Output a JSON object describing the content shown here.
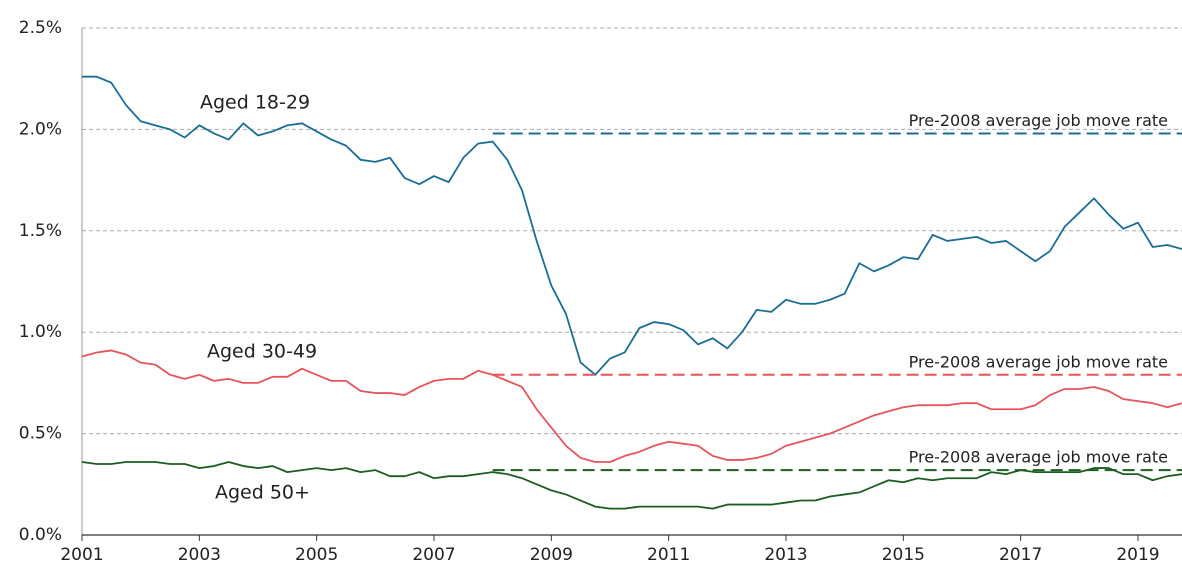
{
  "chart_data": {
    "type": "line",
    "x": [
      2001,
      2001.25,
      2001.5,
      2001.75,
      2002,
      2002.25,
      2002.5,
      2002.75,
      2003,
      2003.25,
      2003.5,
      2003.75,
      2004,
      2004.25,
      2004.5,
      2004.75,
      2005,
      2005.25,
      2005.5,
      2005.75,
      2006,
      2006.25,
      2006.5,
      2006.75,
      2007,
      2007.25,
      2007.5,
      2007.75,
      2008,
      2008.25,
      2008.5,
      2008.75,
      2009,
      2009.25,
      2009.5,
      2009.75,
      2010,
      2010.25,
      2010.5,
      2010.75,
      2011,
      2011.25,
      2011.5,
      2011.75,
      2012,
      2012.25,
      2012.5,
      2012.75,
      2013,
      2013.25,
      2013.5,
      2013.75,
      2014,
      2014.25,
      2014.5,
      2014.75,
      2015,
      2015.25,
      2015.5,
      2015.75,
      2016,
      2016.25,
      2016.5,
      2016.75,
      2017,
      2017.25,
      2017.5,
      2017.75,
      2018,
      2018.25,
      2018.5,
      2018.75,
      2019,
      2019.25,
      2019.5,
      2019.75
    ],
    "series": [
      {
        "name": "Aged 18-29",
        "color": "#1a6e96",
        "label_color": "#1a6e96",
        "values": [
          2.26,
          2.26,
          2.23,
          2.12,
          2.04,
          2.02,
          2.0,
          1.96,
          2.02,
          1.98,
          1.95,
          2.03,
          1.97,
          1.99,
          2.02,
          2.03,
          1.99,
          1.95,
          1.92,
          1.85,
          1.84,
          1.86,
          1.76,
          1.73,
          1.77,
          1.74,
          1.86,
          1.93,
          1.94,
          1.85,
          1.7,
          1.45,
          1.23,
          1.09,
          0.85,
          0.79,
          0.87,
          0.9,
          1.02,
          1.05,
          1.04,
          1.01,
          0.94,
          0.97,
          0.92,
          1.0,
          1.11,
          1.1,
          1.16,
          1.14,
          1.14,
          1.16,
          1.19,
          1.34,
          1.3,
          1.33,
          1.37,
          1.36,
          1.48,
          1.45,
          1.46,
          1.47,
          1.44,
          1.45,
          1.4,
          1.35,
          1.4,
          1.52,
          1.59,
          1.66,
          1.58,
          1.51,
          1.54,
          1.42,
          1.43,
          1.41
        ],
        "average": 1.98,
        "average_label": "Pre-2008 average job move rate"
      },
      {
        "name": "Aged 30-49",
        "color": "#e8545a",
        "label_color": "#e8545a",
        "values": [
          0.88,
          0.9,
          0.91,
          0.89,
          0.85,
          0.84,
          0.79,
          0.77,
          0.79,
          0.76,
          0.77,
          0.75,
          0.75,
          0.78,
          0.78,
          0.82,
          0.79,
          0.76,
          0.76,
          0.71,
          0.7,
          0.7,
          0.69,
          0.73,
          0.76,
          0.77,
          0.77,
          0.81,
          0.79,
          0.76,
          0.73,
          0.62,
          0.53,
          0.44,
          0.38,
          0.36,
          0.36,
          0.39,
          0.41,
          0.44,
          0.46,
          0.45,
          0.44,
          0.39,
          0.37,
          0.37,
          0.38,
          0.4,
          0.44,
          0.46,
          0.48,
          0.5,
          0.53,
          0.56,
          0.59,
          0.61,
          0.63,
          0.64,
          0.64,
          0.64,
          0.65,
          0.65,
          0.62,
          0.62,
          0.62,
          0.64,
          0.69,
          0.72,
          0.72,
          0.73,
          0.71,
          0.67,
          0.66,
          0.65,
          0.63,
          0.65
        ],
        "average": 0.79,
        "average_label": "Pre-2008 average job move rate"
      },
      {
        "name": "Aged 50+",
        "color": "#1b5e1f",
        "label_color": "#4aa870",
        "values": [
          0.36,
          0.35,
          0.35,
          0.36,
          0.36,
          0.36,
          0.35,
          0.35,
          0.33,
          0.34,
          0.36,
          0.34,
          0.33,
          0.34,
          0.31,
          0.32,
          0.33,
          0.32,
          0.33,
          0.31,
          0.32,
          0.29,
          0.29,
          0.31,
          0.28,
          0.29,
          0.29,
          0.3,
          0.31,
          0.3,
          0.28,
          0.25,
          0.22,
          0.2,
          0.17,
          0.14,
          0.13,
          0.13,
          0.14,
          0.14,
          0.14,
          0.14,
          0.14,
          0.13,
          0.15,
          0.15,
          0.15,
          0.15,
          0.16,
          0.17,
          0.17,
          0.19,
          0.2,
          0.21,
          0.24,
          0.27,
          0.26,
          0.28,
          0.27,
          0.28,
          0.28,
          0.28,
          0.31,
          0.3,
          0.32,
          0.31,
          0.31,
          0.31,
          0.31,
          0.33,
          0.33,
          0.3,
          0.3,
          0.27,
          0.29,
          0.3
        ],
        "average": 0.32,
        "average_label": "Pre-2008 average job move rate"
      }
    ],
    "average_from": 2008,
    "xlim": [
      2001,
      2019.75
    ],
    "xticks": [
      2001,
      2003,
      2005,
      2007,
      2009,
      2011,
      2013,
      2015,
      2017,
      2019
    ],
    "ylim": [
      0,
      2.5
    ],
    "yticks": [
      {
        "value": 0,
        "label": "0.0%"
      },
      {
        "value": 0.5,
        "label": "0.5%"
      },
      {
        "value": 1,
        "label": "1.0%"
      },
      {
        "value": 1.5,
        "label": "1.5%"
      },
      {
        "value": 2,
        "label": "2.0%"
      },
      {
        "value": 2.5,
        "label": "2.5%"
      }
    ],
    "grid": true
  }
}
